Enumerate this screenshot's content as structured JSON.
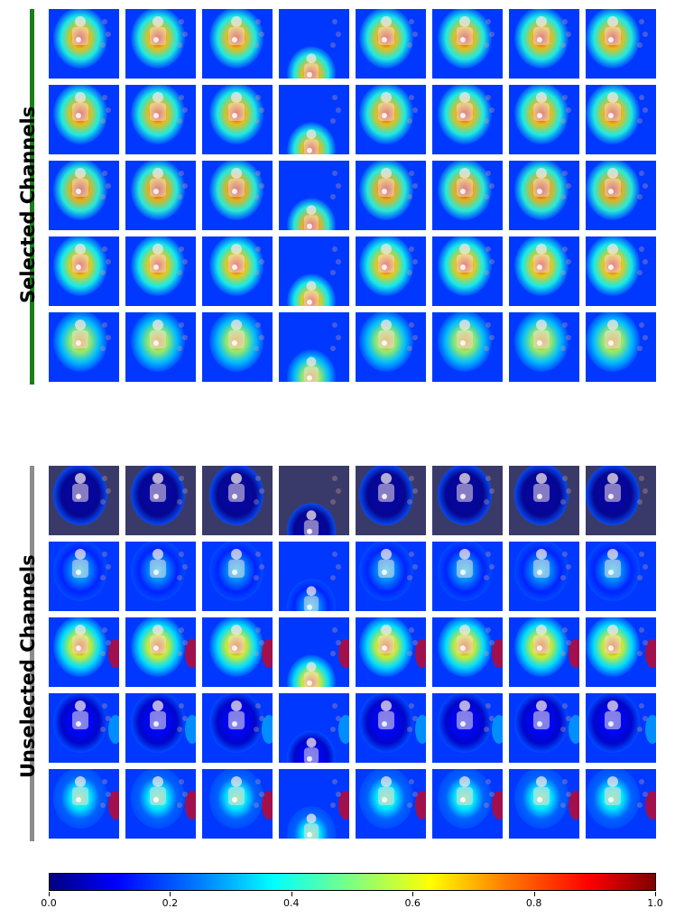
{
  "panels": [
    {
      "id": "selected",
      "label": "Selected Channels",
      "bar_color": "#1a7f1a",
      "rows": 5,
      "cols": 8
    },
    {
      "id": "unselected",
      "label": "Unselected Channels",
      "bar_color": "#8c8c8c",
      "rows": 5,
      "cols": 8
    }
  ],
  "colorbar": {
    "colormap": "jet",
    "ticks": [
      "0.0",
      "0.2",
      "0.4",
      "0.6",
      "0.8",
      "1.0"
    ]
  }
}
